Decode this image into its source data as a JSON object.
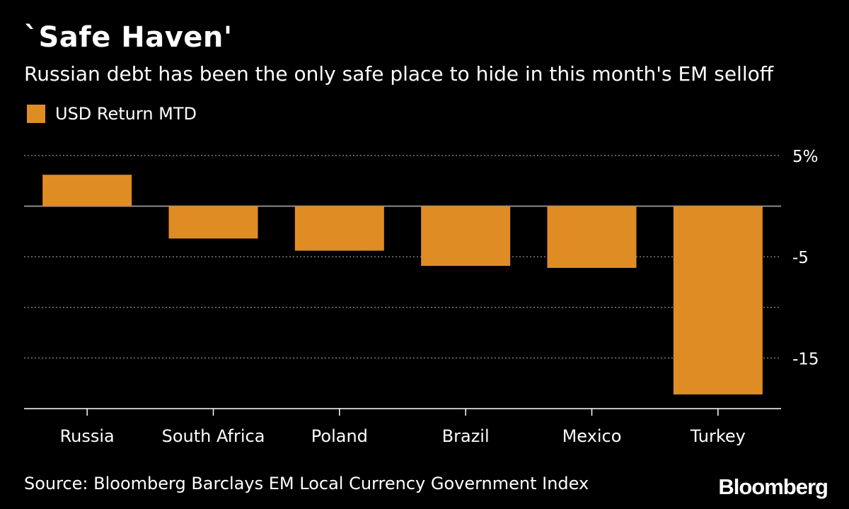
{
  "chart_data": {
    "type": "bar",
    "title": "`Safe Haven'",
    "subtitle": "Russian debt has been the only safe place to hide in this month's EM selloff",
    "categories": [
      "Russia",
      "South Africa",
      "Poland",
      "Brazil",
      "Mexico",
      "Turkey"
    ],
    "series": [
      {
        "name": "USD Return MTD",
        "color": "#E08C25",
        "values": [
          3.1,
          -3.2,
          -4.4,
          -5.9,
          -6.1,
          -18.6
        ]
      }
    ],
    "yticks": [
      {
        "value": 5,
        "label": "5%"
      },
      {
        "value": 0,
        "label": ""
      },
      {
        "value": -5,
        "label": "-5"
      },
      {
        "value": -10,
        "label": ""
      },
      {
        "value": -15,
        "label": "-15"
      }
    ],
    "ylim": [
      -20,
      5
    ],
    "grid": true,
    "legend_position": "top-left",
    "xlabel": "",
    "ylabel": ""
  },
  "footer": {
    "source": "Source: Bloomberg Barclays EM Local Currency Government Index",
    "brand": "Bloomberg"
  }
}
